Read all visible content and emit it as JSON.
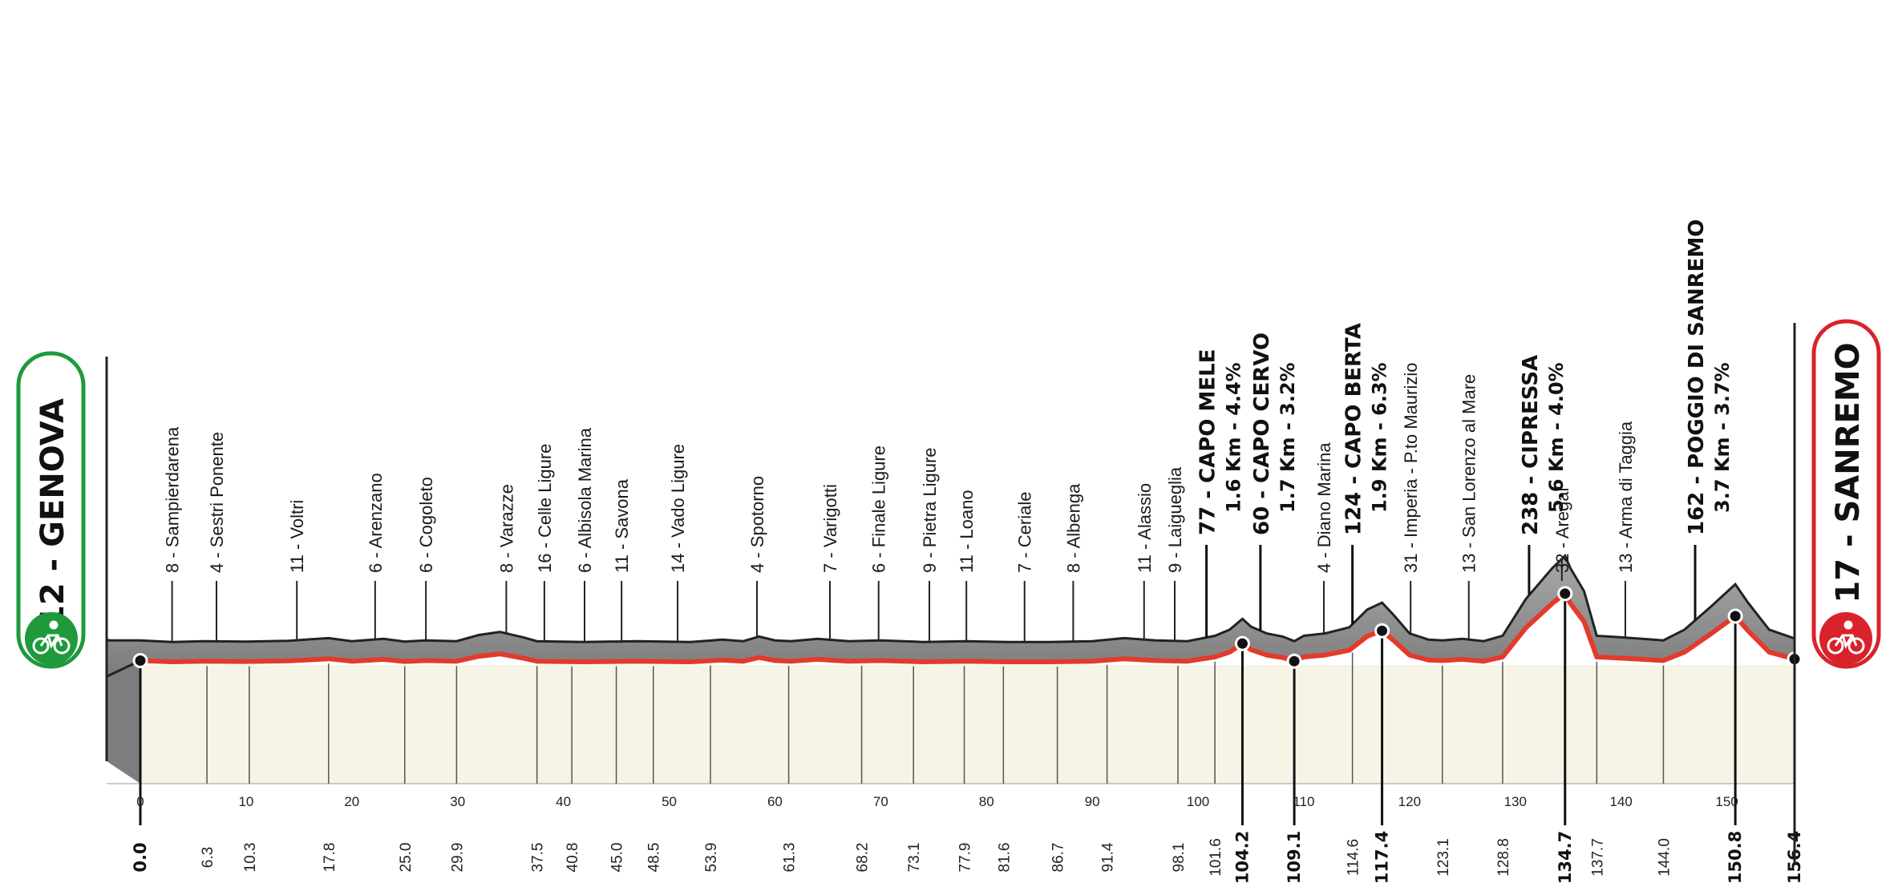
{
  "start": {
    "name": "12 - GENOVA",
    "color": "#1e9a3c"
  },
  "finish": {
    "name": "17 - SANREMO",
    "color": "#d8232a"
  },
  "colors": {
    "road": "#e33a2c",
    "terrain": "#8f8f8f",
    "field": "#f5f4e6"
  },
  "km_scale": [
    "0",
    "10",
    "20",
    "30",
    "40",
    "50",
    "60",
    "70",
    "80",
    "90",
    "100",
    "110",
    "120",
    "130",
    "140",
    "150"
  ],
  "km_points": [
    {
      "label": "0.0",
      "km": 0.0,
      "major": true
    },
    {
      "label": "6.3",
      "km": 6.3
    },
    {
      "label": "10.3",
      "km": 10.3
    },
    {
      "label": "17.8",
      "km": 17.8
    },
    {
      "label": "25.0",
      "km": 25.0
    },
    {
      "label": "29.9",
      "km": 29.9
    },
    {
      "label": "37.5",
      "km": 37.5
    },
    {
      "label": "40.8",
      "km": 40.8
    },
    {
      "label": "45.0",
      "km": 45.0
    },
    {
      "label": "48.5",
      "km": 48.5
    },
    {
      "label": "53.9",
      "km": 53.9
    },
    {
      "label": "61.3",
      "km": 61.3
    },
    {
      "label": "68.2",
      "km": 68.2
    },
    {
      "label": "73.1",
      "km": 73.1
    },
    {
      "label": "77.9",
      "km": 77.9
    },
    {
      "label": "81.6",
      "km": 81.6
    },
    {
      "label": "86.7",
      "km": 86.7
    },
    {
      "label": "91.4",
      "km": 91.4
    },
    {
      "label": "98.1",
      "km": 98.1
    },
    {
      "label": "101.6",
      "km": 101.6
    },
    {
      "label": "104.2",
      "km": 104.2,
      "major": true
    },
    {
      "label": "109.1",
      "km": 109.1,
      "major": true
    },
    {
      "label": "114.6",
      "km": 114.6
    },
    {
      "label": "117.4",
      "km": 117.4,
      "major": true
    },
    {
      "label": "123.1",
      "km": 123.1
    },
    {
      "label": "128.8",
      "km": 128.8
    },
    {
      "label": "134.7",
      "km": 134.7,
      "major": true
    },
    {
      "label": "137.7",
      "km": 137.7
    },
    {
      "label": "144.0",
      "km": 144.0
    },
    {
      "label": "150.8",
      "km": 150.8,
      "major": true
    },
    {
      "label": "156.4",
      "km": 156.4,
      "major": true
    }
  ],
  "places": [
    {
      "label": "8 - Sampierdarena",
      "km": 3.0
    },
    {
      "label": "4 - Sestri Ponente",
      "km": 7.2
    },
    {
      "label": "11 - Voltri",
      "km": 14.8
    },
    {
      "label": "6 - Arenzano",
      "km": 22.2
    },
    {
      "label": "6 - Cogoleto",
      "km": 27.0
    },
    {
      "label": "8 - Varazze",
      "km": 34.6
    },
    {
      "label": "16 - Celle Ligure",
      "km": 38.2
    },
    {
      "label": "6 - Albisola Marina",
      "km": 42.0
    },
    {
      "label": "11 - Savona",
      "km": 45.5
    },
    {
      "label": "14 - Vado Ligure",
      "km": 50.8
    },
    {
      "label": "4 - Spotorno",
      "km": 58.3
    },
    {
      "label": "7 - Varigotti",
      "km": 65.2
    },
    {
      "label": "6 - Finale Ligure",
      "km": 69.8
    },
    {
      "label": "9 - Pietra Ligure",
      "km": 74.6
    },
    {
      "label": "11 - Loano",
      "km": 78.1
    },
    {
      "label": "7 - Ceriale",
      "km": 83.6
    },
    {
      "label": "8 - Albenga",
      "km": 88.2
    },
    {
      "label": "11 - Alassio",
      "km": 94.9
    },
    {
      "label": "9 - Laigueglia",
      "km": 97.8
    },
    {
      "label": "4 - Diano Marina",
      "km": 111.9
    },
    {
      "label": "31 - Imperia - P.to Maurizio",
      "km": 120.1
    },
    {
      "label": "13 - San Lorenzo al Mare",
      "km": 125.6
    },
    {
      "label": "32 - Aregai",
      "km": 134.4
    },
    {
      "label": "13 - Arma di Taggia",
      "km": 140.4
    }
  ],
  "climbs": [
    {
      "label": "77 - CAPO MELE",
      "sub": "1.6 Km - 4.4%",
      "km": 100.8
    },
    {
      "label": "60 - CAPO CERVO",
      "sub": "1.7 Km - 3.2%",
      "km": 105.9
    },
    {
      "label": "124 - CAPO BERTA",
      "sub": "1.9 Km - 6.3%",
      "km": 114.6
    },
    {
      "label": "238 - CIPRESSA",
      "sub": "5.6 Km - 4.0%",
      "km": 131.3
    },
    {
      "label": "162 - POGGIO DI SANREMO",
      "sub": "3.7 Km - 3.7%",
      "km": 147.0
    }
  ],
  "elevation_profile": [
    [
      0,
      12
    ],
    [
      3,
      8
    ],
    [
      6,
      10
    ],
    [
      10,
      9
    ],
    [
      14,
      11
    ],
    [
      17.8,
      18
    ],
    [
      20,
      10
    ],
    [
      23,
      16
    ],
    [
      25,
      9
    ],
    [
      27,
      12
    ],
    [
      29.9,
      10
    ],
    [
      32,
      26
    ],
    [
      34,
      34
    ],
    [
      36.2,
      20
    ],
    [
      37.5,
      10
    ],
    [
      42,
      8
    ],
    [
      47,
      10
    ],
    [
      52,
      8
    ],
    [
      55,
      14
    ],
    [
      57,
      10
    ],
    [
      58.5,
      22
    ],
    [
      60,
      12
    ],
    [
      61.5,
      10
    ],
    [
      64,
      16
    ],
    [
      67,
      10
    ],
    [
      70,
      12
    ],
    [
      74,
      8
    ],
    [
      78,
      10
    ],
    [
      82,
      8
    ],
    [
      86,
      8
    ],
    [
      90,
      10
    ],
    [
      93,
      18
    ],
    [
      96,
      12
    ],
    [
      99,
      10
    ],
    [
      101.6,
      24
    ],
    [
      103,
      40
    ],
    [
      104.2,
      68
    ],
    [
      105,
      48
    ],
    [
      106.5,
      30
    ],
    [
      108,
      22
    ],
    [
      109.1,
      10
    ],
    [
      110,
      24
    ],
    [
      112,
      30
    ],
    [
      114.3,
      46
    ],
    [
      116,
      92
    ],
    [
      117.4,
      110
    ],
    [
      118.5,
      78
    ],
    [
      120,
      30
    ],
    [
      121.8,
      14
    ],
    [
      123.1,
      12
    ],
    [
      125,
      16
    ],
    [
      127,
      10
    ],
    [
      128.8,
      24
    ],
    [
      131,
      120
    ],
    [
      133.5,
      200
    ],
    [
      134.7,
      232
    ],
    [
      135.2,
      200
    ],
    [
      136.5,
      140
    ],
    [
      137.7,
      24
    ],
    [
      140,
      20
    ],
    [
      142,
      16
    ],
    [
      144,
      12
    ],
    [
      146,
      40
    ],
    [
      148.5,
      100
    ],
    [
      150.8,
      158
    ],
    [
      152,
      110
    ],
    [
      154,
      40
    ],
    [
      156.4,
      17
    ]
  ]
}
